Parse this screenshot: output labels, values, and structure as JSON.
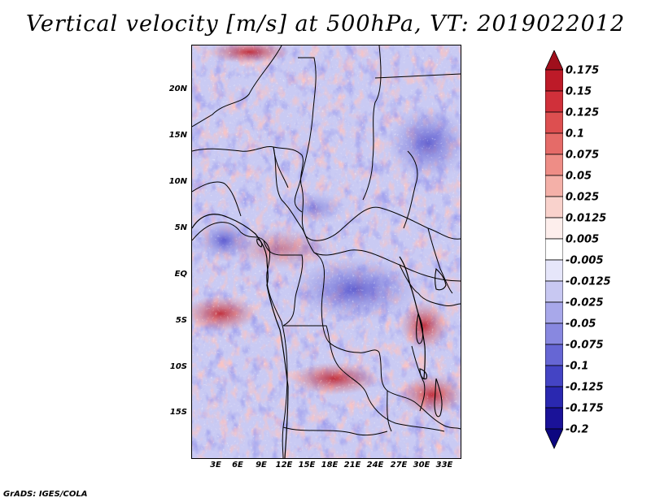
{
  "title": "Vertical velocity [m/s] at 500hPa, VT: 2019022012",
  "credit": "GrADS: IGES/COLA",
  "map": {
    "variable": "vertical velocity",
    "level": "500hPa",
    "valid_time": "2019022012",
    "lat_labels": [
      "20N",
      "15N",
      "10N",
      "5N",
      "EQ",
      "5S",
      "10S",
      "15S"
    ],
    "lon_labels": [
      "3E",
      "6E",
      "9E",
      "12E",
      "15E",
      "18E",
      "21E",
      "24E",
      "27E",
      "30E",
      "33E"
    ],
    "background_color": "#cfd0f5"
  },
  "colorbar": {
    "levels": [
      "0.175",
      "0.15",
      "0.125",
      "0.1",
      "0.075",
      "0.05",
      "0.025",
      "0.0125",
      "0.005",
      "-0.005",
      "-0.0125",
      "-0.025",
      "-0.05",
      "-0.075",
      "-0.1",
      "-0.125",
      "-0.175",
      "-0.2"
    ],
    "colors": [
      "#a00f1c",
      "#bd1a28",
      "#d0303a",
      "#dd4f50",
      "#e56b68",
      "#ee8d86",
      "#f4b0a8",
      "#f9d2cc",
      "#fdeeec",
      "#ffffff",
      "#e6e6fa",
      "#c8c8f2",
      "#a8a8ea",
      "#8888e0",
      "#6666d4",
      "#4444c4",
      "#2a28b0",
      "#1a1298",
      "#0c0680"
    ]
  }
}
